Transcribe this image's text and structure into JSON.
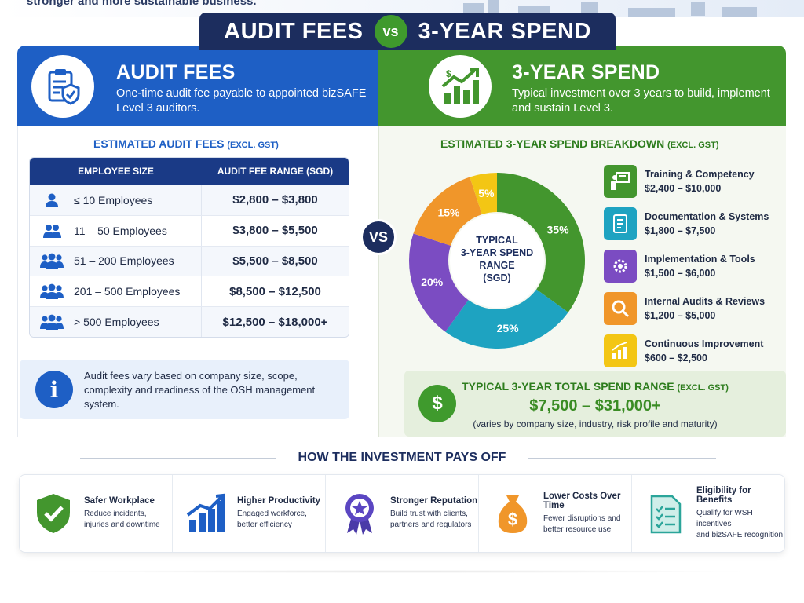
{
  "top": {
    "text": "stronger and more sustainable business."
  },
  "title": {
    "left": "AUDIT FEES",
    "vs": "vs",
    "right": "3-YEAR SPEND"
  },
  "left_header": {
    "title": "AUDIT FEES",
    "desc": "One-time audit fee payable to appointed bizSAFE Level 3 auditors."
  },
  "right_header": {
    "title": "3-YEAR SPEND",
    "desc": "Typical investment over 3 years to build, implement and sustain Level 3."
  },
  "audit": {
    "section_title": "ESTIMATED AUDIT FEES",
    "excl": "(EXCL. GST)",
    "col1": "EMPLOYEE SIZE",
    "col2": "AUDIT FEE RANGE (SGD)",
    "rows": [
      {
        "size": "≤ 10 Employees",
        "fee": "$2,800 – $3,800",
        "icon": "person-icon"
      },
      {
        "size": "11 – 50 Employees",
        "fee": "$3,800 – $5,500",
        "icon": "people-icon"
      },
      {
        "size": "51 – 200 Employees",
        "fee": "$5,500 – $8,500",
        "icon": "group-icon"
      },
      {
        "size": "201 – 500 Employees",
        "fee": "$8,500 – $12,500",
        "icon": "group-icon"
      },
      {
        "size": "> 500 Employees",
        "fee": "$12,500 – $18,000+",
        "icon": "group-icon"
      }
    ],
    "note": "Audit fees vary based on company size, scope, complexity and readiness of the OSH management system.",
    "note_icon": "i"
  },
  "vs_badge": "VS",
  "spend": {
    "section_title": "ESTIMATED 3-YEAR SPEND BREAKDOWN",
    "excl": "(EXCL. GST)",
    "center_label": "TYPICAL 3-YEAR SPEND RANGE (SGD)",
    "legend": [
      {
        "name": "Training & Competency",
        "range": "$2,400 – $10,000",
        "color": "#43962e",
        "icon": "training-icon"
      },
      {
        "name": "Documentation & Systems",
        "range": "$1,800 – $7,500",
        "color": "#1ea3c1",
        "icon": "document-icon"
      },
      {
        "name": "Implementation & Tools",
        "range": "$1,500 – $6,000",
        "color": "#7b4cc2",
        "icon": "gears-icon"
      },
      {
        "name": "Internal Audits & Reviews",
        "range": "$1,200 – $5,000",
        "color": "#f0962a",
        "icon": "magnifier-icon"
      },
      {
        "name": "Continuous Improvement",
        "range": "$600 – $2,500",
        "color": "#f3c614",
        "icon": "growth-icon"
      }
    ],
    "total_title": "TYPICAL 3-YEAR TOTAL SPEND RANGE",
    "total_excl": "(EXCL. GST)",
    "total_value": "$7,500 – $31,000+",
    "total_note": "(varies by company size, industry, risk profile and maturity)",
    "total_icon": "$"
  },
  "chart_data": {
    "type": "pie",
    "title": "ESTIMATED 3-YEAR SPEND BREAKDOWN",
    "categories": [
      "Training & Competency",
      "Documentation & Systems",
      "Implementation & Tools",
      "Internal Audits & Reviews",
      "Continuous Improvement"
    ],
    "values": [
      35,
      25,
      20,
      15,
      5
    ],
    "labels": [
      "35%",
      "25%",
      "20%",
      "15%",
      "5%"
    ],
    "colors": [
      "#43962e",
      "#1ea3c1",
      "#7b4cc2",
      "#f0962a",
      "#f3c614"
    ],
    "legend_position": "right"
  },
  "payoff": {
    "title": "HOW THE INVESTMENT PAYS OFF",
    "items": [
      {
        "title": "Safer Workplace",
        "desc1": "Reduce incidents,",
        "desc2": "injuries and downtime",
        "icon": "shield-check-icon"
      },
      {
        "title": "Higher Productivity",
        "desc1": "Engaged workforce,",
        "desc2": "better efficiency",
        "icon": "bar-growth-icon"
      },
      {
        "title": "Stronger Reputation",
        "desc1": "Build trust with clients,",
        "desc2": "partners and regulators",
        "icon": "award-badge-icon"
      },
      {
        "title": "Lower Costs Over Time",
        "desc1": "Fewer disruptions and",
        "desc2": "better resource use",
        "icon": "money-bag-icon"
      },
      {
        "title": "Eligibility for Benefits",
        "desc1": "Qualify for WSH incentives",
        "desc2": "and bizSAFE recognition",
        "icon": "checklist-icon"
      }
    ]
  }
}
